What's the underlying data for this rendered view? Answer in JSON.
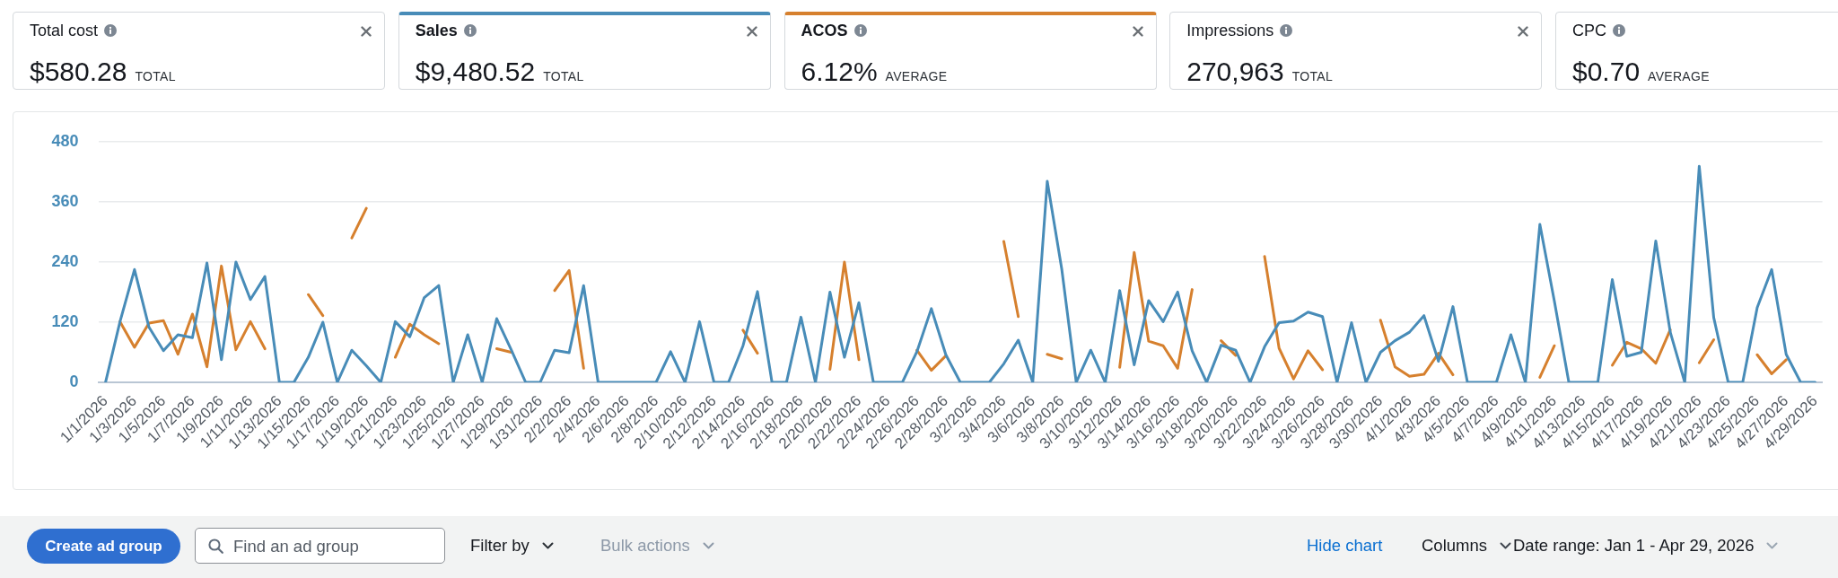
{
  "chart_data": [
    {
      "type": "other",
      "title": "Total cost",
      "annotations": [
        "$580.28",
        "TOTAL"
      ]
    },
    {
      "type": "other",
      "title": "Sales",
      "annotations": [
        "$9,480.52",
        "TOTAL"
      ],
      "color": "#488cb8"
    },
    {
      "type": "other",
      "title": "ACOS",
      "annotations": [
        "6.12%",
        "AVERAGE"
      ],
      "color": "#d6802e"
    },
    {
      "type": "other",
      "title": "Impressions",
      "annotations": [
        "270,963",
        "TOTAL"
      ]
    },
    {
      "type": "other",
      "title": "CPC",
      "annotations": [
        "$0.70",
        "AVERAGE"
      ]
    },
    {
      "type": "line",
      "categories": [
        "1/1/2026",
        null,
        "1/3/2026",
        null,
        "1/5/2026",
        null,
        "1/7/2026",
        null,
        "1/9/2026",
        null,
        "1/11/2026",
        null,
        "1/13/2026",
        null,
        "1/15/2026",
        null,
        "1/17/2026",
        null,
        "1/19/2026",
        null,
        "1/21/2026",
        null,
        "1/23/2026",
        null,
        "1/25/2026",
        null,
        "1/27/2026",
        null,
        "1/29/2026",
        null,
        "1/31/2026",
        null,
        "2/2/2026",
        null,
        "2/4/2026",
        null,
        "2/6/2026",
        null,
        "2/8/2026",
        null,
        "2/10/2026",
        null,
        "2/12/2026",
        null,
        "2/14/2026",
        null,
        "2/16/2026",
        null,
        "2/18/2026",
        null,
        "2/20/2026",
        null,
        "2/22/2026",
        null,
        "2/24/2026",
        null,
        "2/26/2026",
        null,
        "2/28/2026",
        null,
        "3/2/2026",
        null,
        "3/4/2026",
        null,
        "3/6/2026",
        null,
        "3/8/2026",
        null,
        "3/10/2026",
        null,
        "3/12/2026",
        null,
        "3/14/2026",
        null,
        "3/16/2026",
        null,
        "3/18/2026",
        null,
        "3/20/2026",
        null,
        "3/22/2026",
        null,
        "3/24/2026",
        null,
        "3/26/2026",
        null,
        "3/28/2026",
        null,
        "3/30/2026",
        null,
        "4/1/2026",
        null,
        "4/3/2026",
        null,
        "4/5/2026",
        null,
        "4/7/2026",
        null,
        "4/9/2026",
        null,
        "4/11/2026",
        null,
        "4/13/2026",
        null,
        "4/15/2026",
        null,
        "4/17/2026",
        null,
        "4/19/2026",
        null,
        "4/21/2026",
        null,
        "4/23/2026",
        null,
        "4/25/2026",
        null,
        "4/27/2026",
        null,
        "4/29/2026"
      ],
      "series": [
        {
          "color": "#488cb8",
          "values": [
            0,
            121,
            225,
            110,
            63,
            95,
            89,
            238,
            45,
            240,
            165,
            211,
            0,
            0,
            50,
            120,
            0,
            64,
            33,
            0,
            121,
            91,
            169,
            193,
            0,
            95,
            0,
            127,
            65,
            0,
            0,
            64,
            59,
            193,
            0,
            0,
            0,
            0,
            0,
            61,
            0,
            121,
            0,
            0,
            73,
            181,
            0,
            0,
            130,
            0,
            180,
            50,
            159,
            0,
            0,
            0,
            61,
            147,
            55,
            0,
            0,
            0,
            37,
            84,
            0,
            401,
            226,
            0,
            64,
            0,
            183,
            35,
            163,
            121,
            180,
            63,
            0,
            74,
            64,
            0,
            71,
            119,
            122,
            140,
            131,
            0,
            119,
            0,
            60,
            83,
            100,
            133,
            42,
            151,
            0,
            0,
            0,
            95,
            0,
            315,
            162,
            0,
            0,
            0,
            205,
            52,
            60,
            282,
            100,
            0,
            431,
            129,
            0,
            0,
            149,
            225,
            56,
            0,
            0
          ]
        },
        {
          "color": "#d6802e",
          "values": [
            null,
            121,
            70,
            118,
            123,
            56,
            136,
            31,
            232,
            65,
            121,
            67,
            null,
            null,
            175,
            133,
            null,
            288,
            347,
            null,
            50,
            116,
            95,
            77,
            null,
            null,
            null,
            67,
            60,
            null,
            null,
            183,
            223,
            28,
            null,
            null,
            null,
            null,
            null,
            null,
            null,
            null,
            null,
            null,
            104,
            58,
            null,
            null,
            null,
            null,
            26,
            240,
            45,
            null,
            null,
            null,
            64,
            24,
            53,
            null,
            null,
            null,
            281,
            131,
            null,
            56,
            47,
            null,
            null,
            null,
            30,
            259,
            82,
            73,
            28,
            185,
            null,
            83,
            54,
            null,
            251,
            68,
            7,
            63,
            25,
            null,
            null,
            null,
            124,
            31,
            12,
            16,
            58,
            15,
            null,
            null,
            null,
            null,
            null,
            10,
            73,
            null,
            null,
            null,
            34,
            80,
            67,
            38,
            105,
            null,
            39,
            85,
            null,
            null,
            55,
            17,
            45,
            null,
            null
          ]
        }
      ],
      "ylim": [
        0,
        480
      ],
      "yticks": [
        0,
        120,
        240,
        360,
        480
      ],
      "grid": "y"
    },
    {
      "type": "other",
      "annotations": [
        "Create ad group",
        "Find an ad group",
        "Filter by",
        "Bulk actions",
        "Hide chart",
        "Columns",
        "Date range: Jan 1 - Apr 29, 2026"
      ]
    }
  ]
}
